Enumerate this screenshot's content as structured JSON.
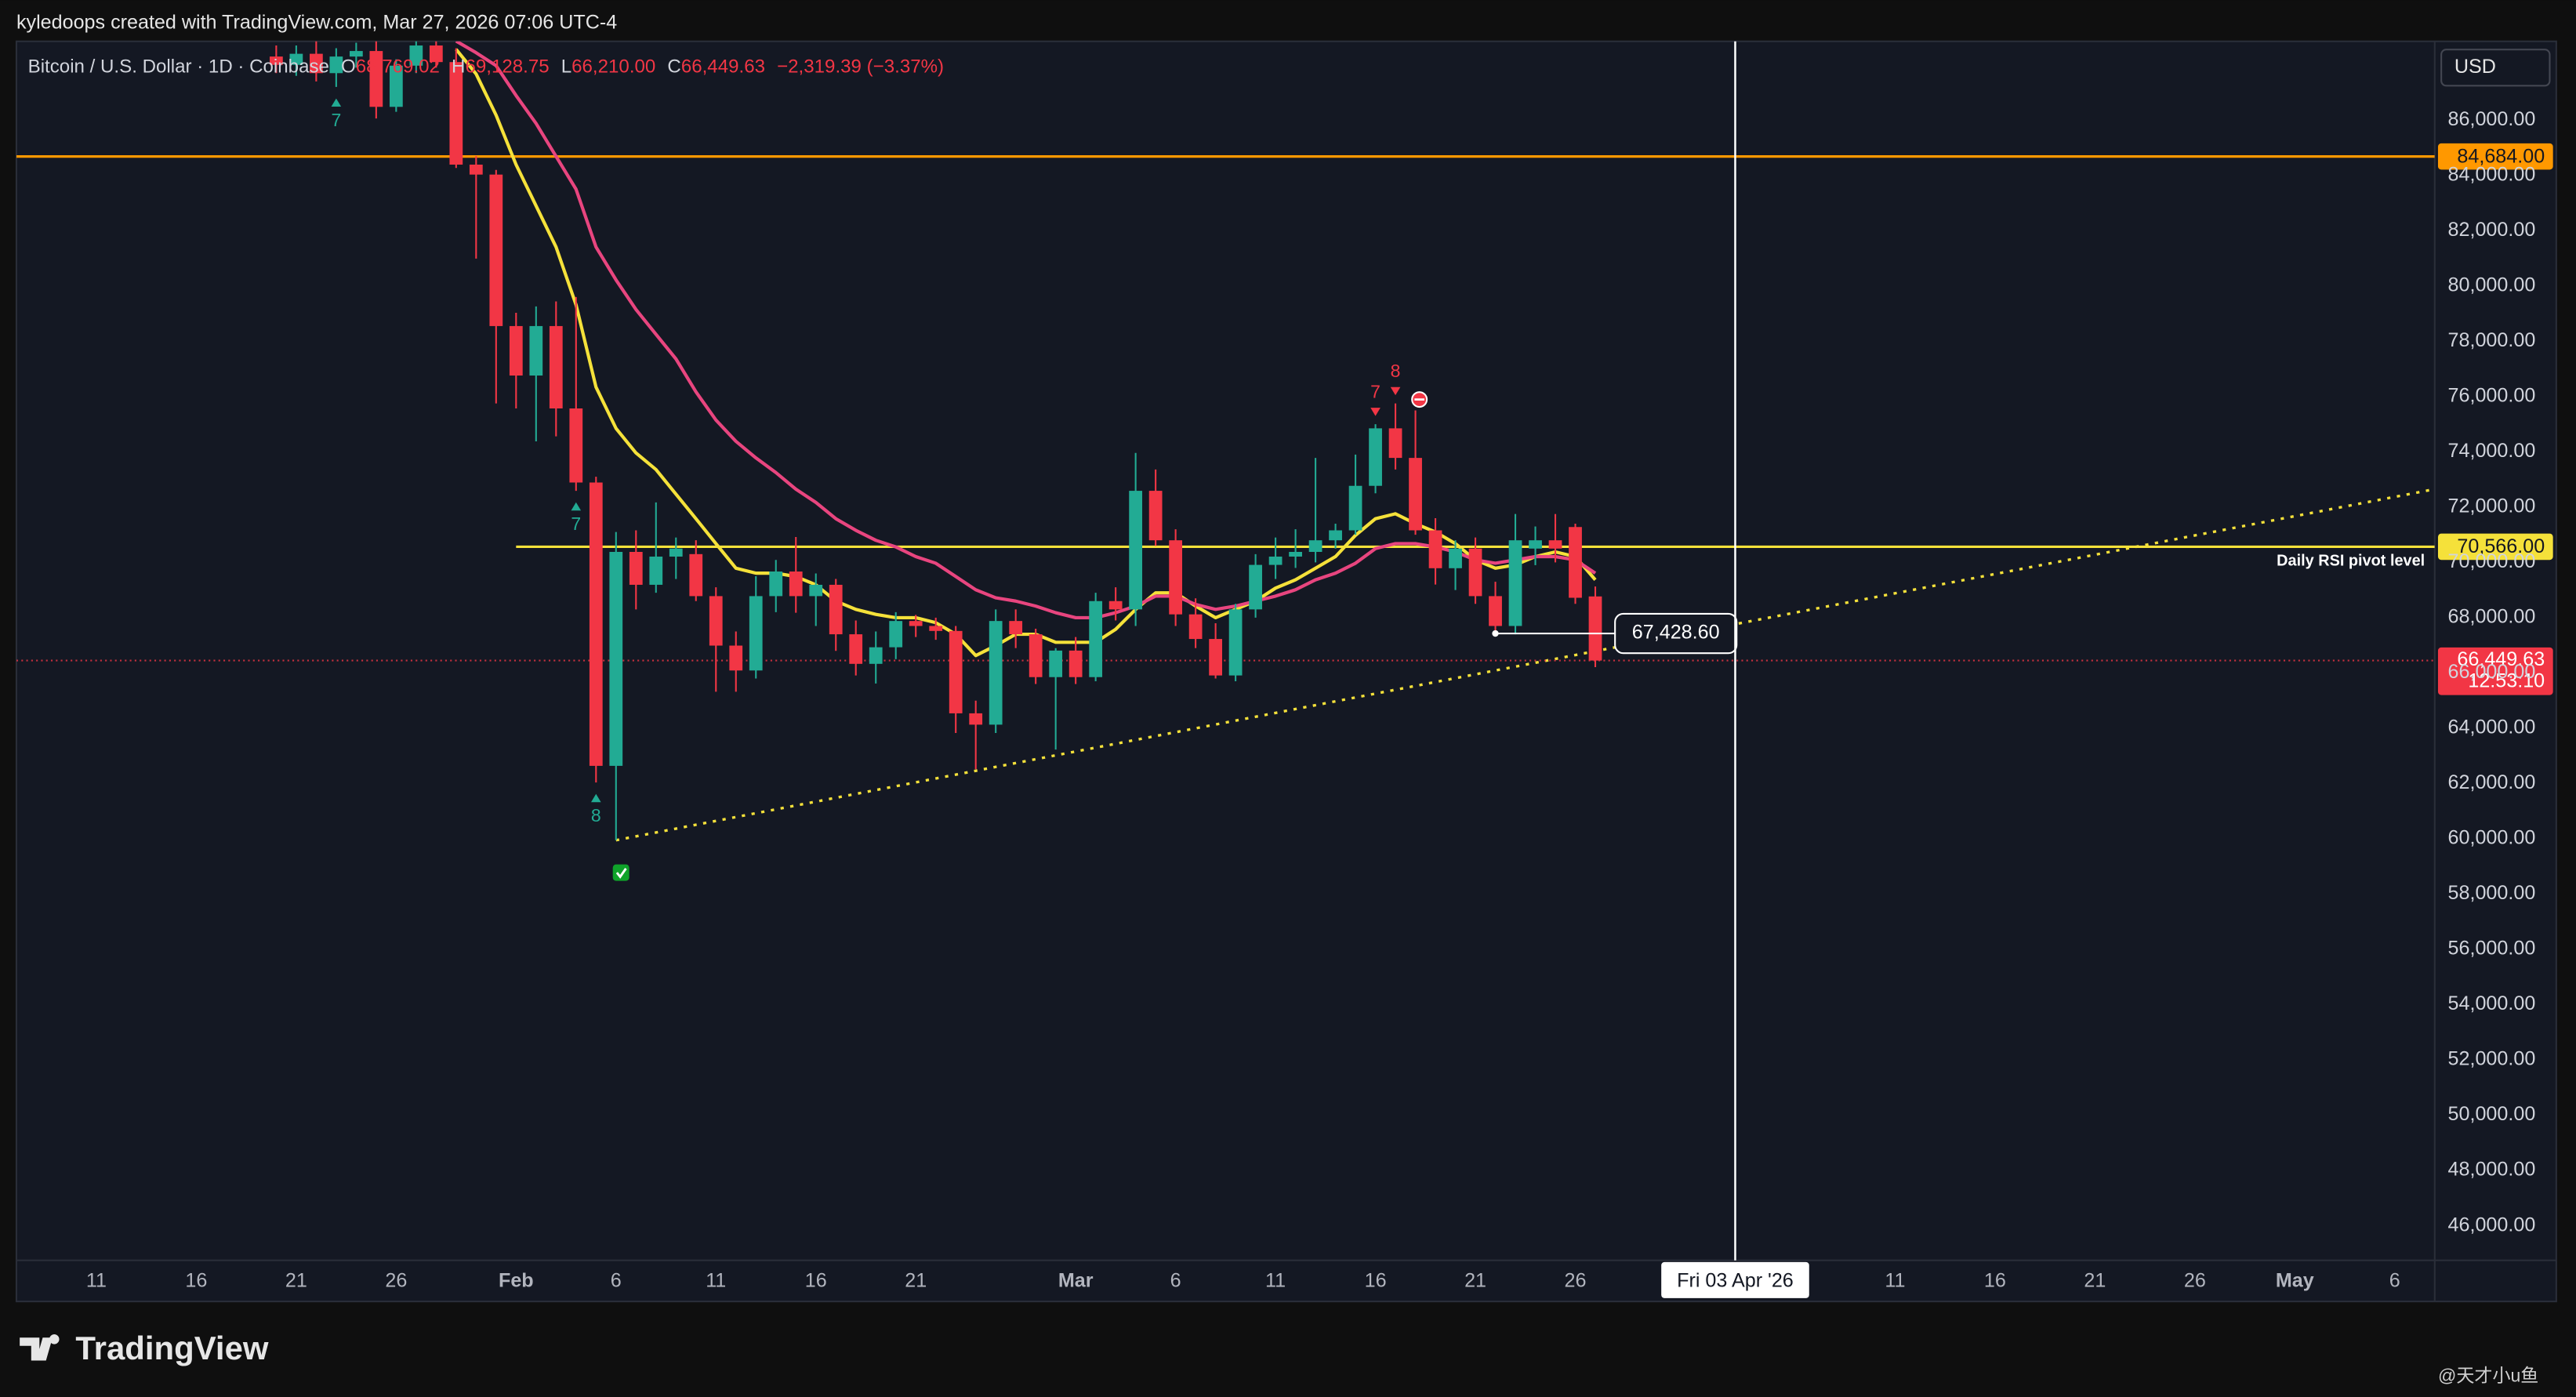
{
  "header": "kyledoops created with TradingView.com, Mar 27, 2026 07:06 UTC-4",
  "footer": {
    "brand": "TradingView",
    "watermark": "@天才小u鱼"
  },
  "chart_data": {
    "type": "candlestick",
    "legend": {
      "symbol": "Bitcoin / U.S. Dollar · 1D · Coinbase",
      "items": [
        {
          "key": "O",
          "value": "68,769.02"
        },
        {
          "key": "H",
          "value": "69,128.75"
        },
        {
          "key": "L",
          "value": "66,210.00"
        },
        {
          "key": "C",
          "value": "66,449.63"
        }
      ],
      "change": "−2,319.39 (−3.37%)"
    },
    "y_unit": "USD",
    "up_color": "#22ab94",
    "down_color": "#f23645",
    "x": [
      "2026-01-20",
      "2026-01-21",
      "2026-01-22",
      "2026-01-23",
      "2026-01-24",
      "2026-01-25",
      "2026-01-26",
      "2026-01-27",
      "2026-01-28",
      "2026-01-29",
      "2026-01-30",
      "2026-01-31",
      "2026-02-01",
      "2026-02-02",
      "2026-02-03",
      "2026-02-04",
      "2026-02-05",
      "2026-02-06",
      "2026-02-07",
      "2026-02-08",
      "2026-02-09",
      "2026-02-10",
      "2026-02-11",
      "2026-02-12",
      "2026-02-13",
      "2026-02-14",
      "2026-02-15",
      "2026-02-16",
      "2026-02-17",
      "2026-02-18",
      "2026-02-19",
      "2026-02-20",
      "2026-02-21",
      "2026-02-22",
      "2026-02-23",
      "2026-02-24",
      "2026-02-25",
      "2026-02-26",
      "2026-02-27",
      "2026-02-28",
      "2026-03-01",
      "2026-03-02",
      "2026-03-03",
      "2026-03-04",
      "2026-03-05",
      "2026-03-06",
      "2026-03-07",
      "2026-03-08",
      "2026-03-09",
      "2026-03-10",
      "2026-03-11",
      "2026-03-12",
      "2026-03-13",
      "2026-03-14",
      "2026-03-15",
      "2026-03-16",
      "2026-03-17",
      "2026-03-18",
      "2026-03-19",
      "2026-03-20",
      "2026-03-21",
      "2026-03-22",
      "2026-03-23",
      "2026-03-24",
      "2026-03-25",
      "2026-03-26",
      "2026-03-27"
    ],
    "open": [
      88300,
      88000,
      88400,
      87700,
      88300,
      88500,
      86480,
      87970,
      88700,
      88100,
      84390,
      84030,
      78550,
      76760,
      78550,
      75570,
      72890,
      62640,
      70380,
      69190,
      70210,
      70300,
      68780,
      66990,
      66090,
      68780,
      69670,
      68780,
      69190,
      67400,
      66330,
      66930,
      67880,
      67700,
      67520,
      64540,
      64130,
      67880,
      67400,
      65850,
      66810,
      65850,
      68600,
      68300,
      72590,
      70800,
      68120,
      67230,
      65910,
      68300,
      69910,
      70210,
      70380,
      70800,
      71160,
      72770,
      74850,
      73780,
      71160,
      69790,
      70500,
      68780,
      67700,
      70500,
      70800,
      71280,
      68769.02
    ],
    "high": [
      88700,
      88700,
      88900,
      88600,
      88800,
      88900,
      88200,
      89100,
      89200,
      88600,
      84700,
      84200,
      79030,
      79260,
      79440,
      79600,
      73100,
      71100,
      71160,
      72170,
      70900,
      70800,
      69100,
      67500,
      69500,
      70090,
      70920,
      69600,
      69400,
      67900,
      67500,
      68200,
      68100,
      68000,
      67700,
      65000,
      68300,
      68300,
      67600,
      66900,
      67300,
      68900,
      69100,
      73960,
      73360,
      71200,
      68700,
      67800,
      68500,
      70300,
      70900,
      71200,
      73780,
      71400,
      73900,
      75000,
      75750,
      75500,
      71600,
      70800,
      70900,
      69300,
      71750,
      71300,
      71750,
      71400,
      69128.75
    ],
    "low": [
      87700,
      87600,
      87400,
      87200,
      87900,
      86060,
      86300,
      87700,
      87900,
      84270,
      80990,
      75750,
      75570,
      74380,
      74560,
      72590,
      62040,
      59950,
      68300,
      68900,
      69400,
      68600,
      65320,
      65320,
      65800,
      68200,
      68180,
      67700,
      66800,
      65910,
      65620,
      66500,
      67300,
      67200,
      63830,
      62520,
      63830,
      66900,
      65600,
      63230,
      65600,
      65700,
      67900,
      67700,
      70600,
      67700,
      66900,
      65800,
      65700,
      68000,
      69400,
      69800,
      70000,
      70500,
      71000,
      72500,
      73360,
      71000,
      69200,
      69000,
      68500,
      67500,
      67400,
      69900,
      70000,
      68500,
      66210
    ],
    "close": [
      88000,
      88400,
      87700,
      88300,
      88500,
      86480,
      87970,
      88700,
      88100,
      84390,
      84030,
      78550,
      76760,
      78550,
      75570,
      72890,
      62640,
      70380,
      69190,
      70210,
      70500,
      68780,
      66990,
      66090,
      68780,
      69670,
      68780,
      69190,
      67400,
      66330,
      66930,
      67880,
      67700,
      67520,
      64540,
      64130,
      67880,
      67400,
      65850,
      66810,
      65850,
      68600,
      68300,
      72590,
      70800,
      68120,
      67230,
      65910,
      68300,
      69910,
      70210,
      70380,
      70800,
      71160,
      72770,
      74850,
      73780,
      71160,
      69790,
      70500,
      68780,
      67700,
      70800,
      70800,
      70500,
      68720,
      66449.63
    ],
    "overlays": [
      {
        "color": "#f5e13a",
        "values": [
          null,
          null,
          null,
          null,
          null,
          null,
          null,
          null,
          null,
          88560,
          87670,
          86180,
          84390,
          82900,
          81410,
          79320,
          76340,
          74850,
          73960,
          73360,
          72470,
          71580,
          70680,
          69790,
          69610,
          69610,
          69490,
          69190,
          68600,
          68300,
          68120,
          68000,
          68000,
          67820,
          67400,
          66630,
          66990,
          67400,
          67400,
          67110,
          67110,
          67110,
          67580,
          68300,
          68900,
          68900,
          68420,
          68000,
          68300,
          68600,
          69070,
          69370,
          69790,
          70210,
          70980,
          71580,
          71760,
          71400,
          71100,
          70680,
          70090,
          69790,
          69910,
          70210,
          70380,
          70210,
          69370
        ]
      },
      {
        "color": "#e8457f",
        "values": [
          null,
          null,
          null,
          null,
          null,
          null,
          null,
          null,
          null,
          88860,
          88440,
          87970,
          86890,
          85880,
          84690,
          83500,
          81410,
          80220,
          79150,
          78250,
          77360,
          76170,
          75150,
          74380,
          73780,
          73250,
          72650,
          72170,
          71580,
          71160,
          70800,
          70560,
          70210,
          69970,
          69490,
          69010,
          68720,
          68600,
          68420,
          68180,
          68000,
          68000,
          68180,
          68420,
          68780,
          68780,
          68480,
          68300,
          68420,
          68600,
          68780,
          69010,
          69370,
          69610,
          69970,
          70500,
          70680,
          70680,
          70560,
          70380,
          70090,
          69970,
          70090,
          70210,
          70210,
          70090,
          69610
        ]
      }
    ],
    "levels": [
      {
        "value": 84684,
        "label": "84,684.00",
        "color": "#ff9800"
      },
      {
        "value": 70566,
        "label": "70,566.00",
        "color": "#f5e13a",
        "start": "2026-02-01",
        "note": "Daily RSI pivot level"
      }
    ],
    "last": {
      "value": 66449.63,
      "label": "66,449.63",
      "countdown": "12:53:10",
      "color": "#f23645"
    },
    "trendline": {
      "x": [
        "2026-02-06",
        "2026-05-08"
      ],
      "y": [
        59950,
        72650
      ],
      "color": "#f5e13a"
    },
    "price_note": {
      "x": [
        "2026-03-22",
        "2026-03-27"
      ],
      "value": 67428.6,
      "label": "67,428.60"
    },
    "crosshair": {
      "x": "2026-04-03",
      "label": "Fri 03 Apr '26"
    },
    "markers": [
      {
        "x": "2026-01-23",
        "text": "7",
        "side": "below",
        "color": "#22ab94"
      },
      {
        "x": "2026-02-04",
        "text": "7",
        "side": "below",
        "color": "#22ab94"
      },
      {
        "x": "2026-02-05",
        "text": "8",
        "side": "below",
        "color": "#22ab94"
      },
      {
        "x": "2026-03-16",
        "text": "7",
        "side": "above",
        "color": "#f23645"
      },
      {
        "x": "2026-03-17",
        "text": "8",
        "side": "above",
        "color": "#f23645"
      }
    ],
    "xlim": [
      "2026-01-07",
      "2026-05-08"
    ],
    "xticks": [
      {
        "value": "2026-01-11",
        "label": "11"
      },
      {
        "value": "2026-01-16",
        "label": "16"
      },
      {
        "value": "2026-01-21",
        "label": "21"
      },
      {
        "value": "2026-01-26",
        "label": "26"
      },
      {
        "value": "2026-02-01",
        "label": "Feb"
      },
      {
        "value": "2026-02-06",
        "label": "6"
      },
      {
        "value": "2026-02-11",
        "label": "11"
      },
      {
        "value": "2026-02-16",
        "label": "16"
      },
      {
        "value": "2026-02-21",
        "label": "21"
      },
      {
        "value": "2026-03-01",
        "label": "Mar"
      },
      {
        "value": "2026-03-06",
        "label": "6"
      },
      {
        "value": "2026-03-11",
        "label": "11"
      },
      {
        "value": "2026-03-16",
        "label": "16"
      },
      {
        "value": "2026-03-21",
        "label": "21"
      },
      {
        "value": "2026-03-26",
        "label": "26"
      },
      {
        "value": "2026-04-11",
        "label": "11"
      },
      {
        "value": "2026-04-16",
        "label": "16"
      },
      {
        "value": "2026-04-21",
        "label": "21"
      },
      {
        "value": "2026-04-26",
        "label": "26"
      },
      {
        "value": "2026-05-01",
        "label": "May"
      },
      {
        "value": "2026-05-06",
        "label": "6"
      }
    ],
    "ylim": [
      44750,
      88850
    ],
    "yticks": [
      {
        "value": 46000,
        "label": "46,000.00"
      },
      {
        "value": 48000,
        "label": "48,000.00"
      },
      {
        "value": 50000,
        "label": "50,000.00"
      },
      {
        "value": 52000,
        "label": "52,000.00"
      },
      {
        "value": 54000,
        "label": "54,000.00"
      },
      {
        "value": 56000,
        "label": "56,000.00"
      },
      {
        "value": 58000,
        "label": "58,000.00"
      },
      {
        "value": 60000,
        "label": "60,000.00"
      },
      {
        "value": 62000,
        "label": "62,000.00"
      },
      {
        "value": 64000,
        "label": "64,000.00"
      },
      {
        "value": 66000,
        "label": "66,000.00"
      },
      {
        "value": 68000,
        "label": "68,000.00"
      },
      {
        "value": 70000,
        "label": "70,000.00"
      },
      {
        "value": 72000,
        "label": "72,000.00"
      },
      {
        "value": 74000,
        "label": "74,000.00"
      },
      {
        "value": 76000,
        "label": "76,000.00"
      },
      {
        "value": 78000,
        "label": "78,000.00"
      },
      {
        "value": 80000,
        "label": "80,000.00"
      },
      {
        "value": 82000,
        "label": "82,000.00"
      },
      {
        "value": 84000,
        "label": "84,000.00"
      },
      {
        "value": 86000,
        "label": "86,000.00"
      }
    ],
    "grid": false
  }
}
